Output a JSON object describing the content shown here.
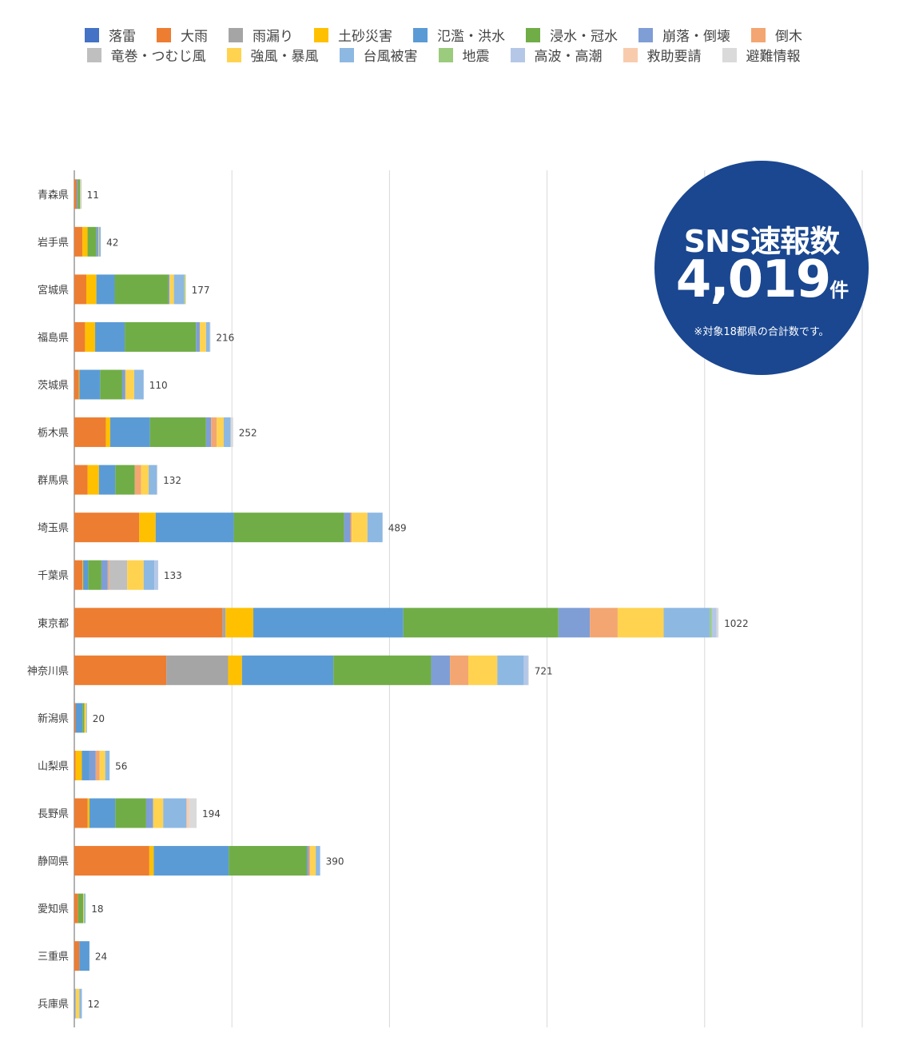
{
  "chart_data": {
    "type": "bar",
    "orientation": "horizontal",
    "stacked": true,
    "title": "",
    "xlabel": "",
    "ylabel": "",
    "xlim": [
      0,
      1250
    ],
    "grid": true,
    "gridlines": [
      250,
      500,
      750,
      1000,
      1250
    ],
    "legend_position": "top",
    "categories": [
      "青森県",
      "岩手県",
      "宮城県",
      "福島県",
      "茨城県",
      "栃木県",
      "群馬県",
      "埼玉県",
      "千葉県",
      "東京都",
      "神奈川県",
      "新潟県",
      "山梨県",
      "長野県",
      "静岡県",
      "愛知県",
      "三重県",
      "兵庫県"
    ],
    "totals": [
      11,
      42,
      177,
      216,
      110,
      252,
      132,
      489,
      133,
      1022,
      721,
      20,
      56,
      194,
      390,
      18,
      24,
      12
    ],
    "series": [
      {
        "name": "落雷",
        "color": "#4472C4",
        "values": [
          0,
          0,
          0,
          0,
          0,
          0,
          0,
          0,
          0,
          0,
          0,
          0,
          0,
          0,
          0,
          0,
          0,
          0
        ]
      },
      {
        "name": "大雨",
        "color": "#ED7D31",
        "values": [
          4,
          13,
          19,
          17,
          7,
          50,
          21,
          103,
          13,
          235,
          146,
          2,
          2,
          21,
          119,
          6,
          8,
          0
        ]
      },
      {
        "name": "雨漏り",
        "color": "#A5A5A5",
        "values": [
          0,
          0,
          0,
          0,
          0,
          0,
          0,
          0,
          0,
          5,
          98,
          0,
          0,
          0,
          0,
          0,
          0,
          0
        ]
      },
      {
        "name": "土砂災害",
        "color": "#FFC000",
        "values": [
          0,
          8,
          16,
          16,
          1,
          7,
          18,
          26,
          1,
          44,
          22,
          0,
          10,
          3,
          7,
          0,
          0,
          0
        ]
      },
      {
        "name": "氾濫・洪水",
        "color": "#5B9BD5",
        "values": [
          2,
          0,
          29,
          47,
          33,
          63,
          26,
          124,
          8,
          238,
          145,
          11,
          12,
          41,
          119,
          0,
          16,
          0
        ]
      },
      {
        "name": "浸水・冠水",
        "color": "#70AD47",
        "values": [
          3,
          14,
          85,
          113,
          35,
          89,
          31,
          175,
          21,
          246,
          155,
          3,
          0,
          49,
          124,
          8,
          0,
          0
        ]
      },
      {
        "name": "崩落・倒壊",
        "color": "#7F9ED6",
        "values": [
          0,
          3,
          2,
          6,
          5,
          8,
          0,
          10,
          10,
          50,
          30,
          0,
          10,
          11,
          3,
          0,
          0,
          2
        ]
      },
      {
        "name": "倒木",
        "color": "#F3A671",
        "values": [
          0,
          0,
          0,
          0,
          0,
          9,
          10,
          2,
          2,
          44,
          29,
          0,
          6,
          0,
          2,
          0,
          0,
          0
        ]
      },
      {
        "name": "竜巻・つむじ風",
        "color": "#BFBFBF",
        "values": [
          0,
          0,
          0,
          0,
          0,
          0,
          0,
          0,
          29,
          0,
          0,
          0,
          0,
          0,
          0,
          0,
          0,
          0
        ]
      },
      {
        "name": "強風・暴風",
        "color": "#FFD34F",
        "values": [
          1,
          1,
          7,
          10,
          14,
          11,
          12,
          25,
          26,
          73,
          46,
          3,
          9,
          16,
          9,
          1,
          0,
          6
        ]
      },
      {
        "name": "台風被害",
        "color": "#8DB8E2",
        "values": [
          1,
          3,
          16,
          6,
          15,
          11,
          13,
          24,
          17,
          73,
          42,
          1,
          7,
          37,
          7,
          2,
          0,
          4
        ]
      },
      {
        "name": "地震",
        "color": "#9BCB7C",
        "values": [
          0,
          0,
          2,
          0,
          0,
          0,
          0,
          0,
          0,
          3,
          0,
          0,
          0,
          0,
          0,
          1,
          0,
          0
        ]
      },
      {
        "name": "高波・高潮",
        "color": "#B4C7E7",
        "values": [
          0,
          0,
          0,
          0,
          0,
          0,
          0,
          0,
          6,
          8,
          7,
          0,
          0,
          0,
          0,
          0,
          0,
          0
        ]
      },
      {
        "name": "救助要請",
        "color": "#F8CBAD",
        "values": [
          0,
          0,
          1,
          0,
          0,
          0,
          0,
          0,
          0,
          0,
          0,
          0,
          0,
          4,
          0,
          0,
          0,
          0
        ]
      },
      {
        "name": "避難情報",
        "color": "#DADADA",
        "values": [
          0,
          0,
          0,
          1,
          0,
          4,
          1,
          0,
          0,
          3,
          1,
          0,
          0,
          12,
          0,
          0,
          0,
          0
        ]
      }
    ]
  },
  "badge": {
    "title": "SNS速報数",
    "count": "4,019",
    "unit": "件",
    "note": "※対象18都県の合計数です。",
    "color": "#1A4790"
  }
}
